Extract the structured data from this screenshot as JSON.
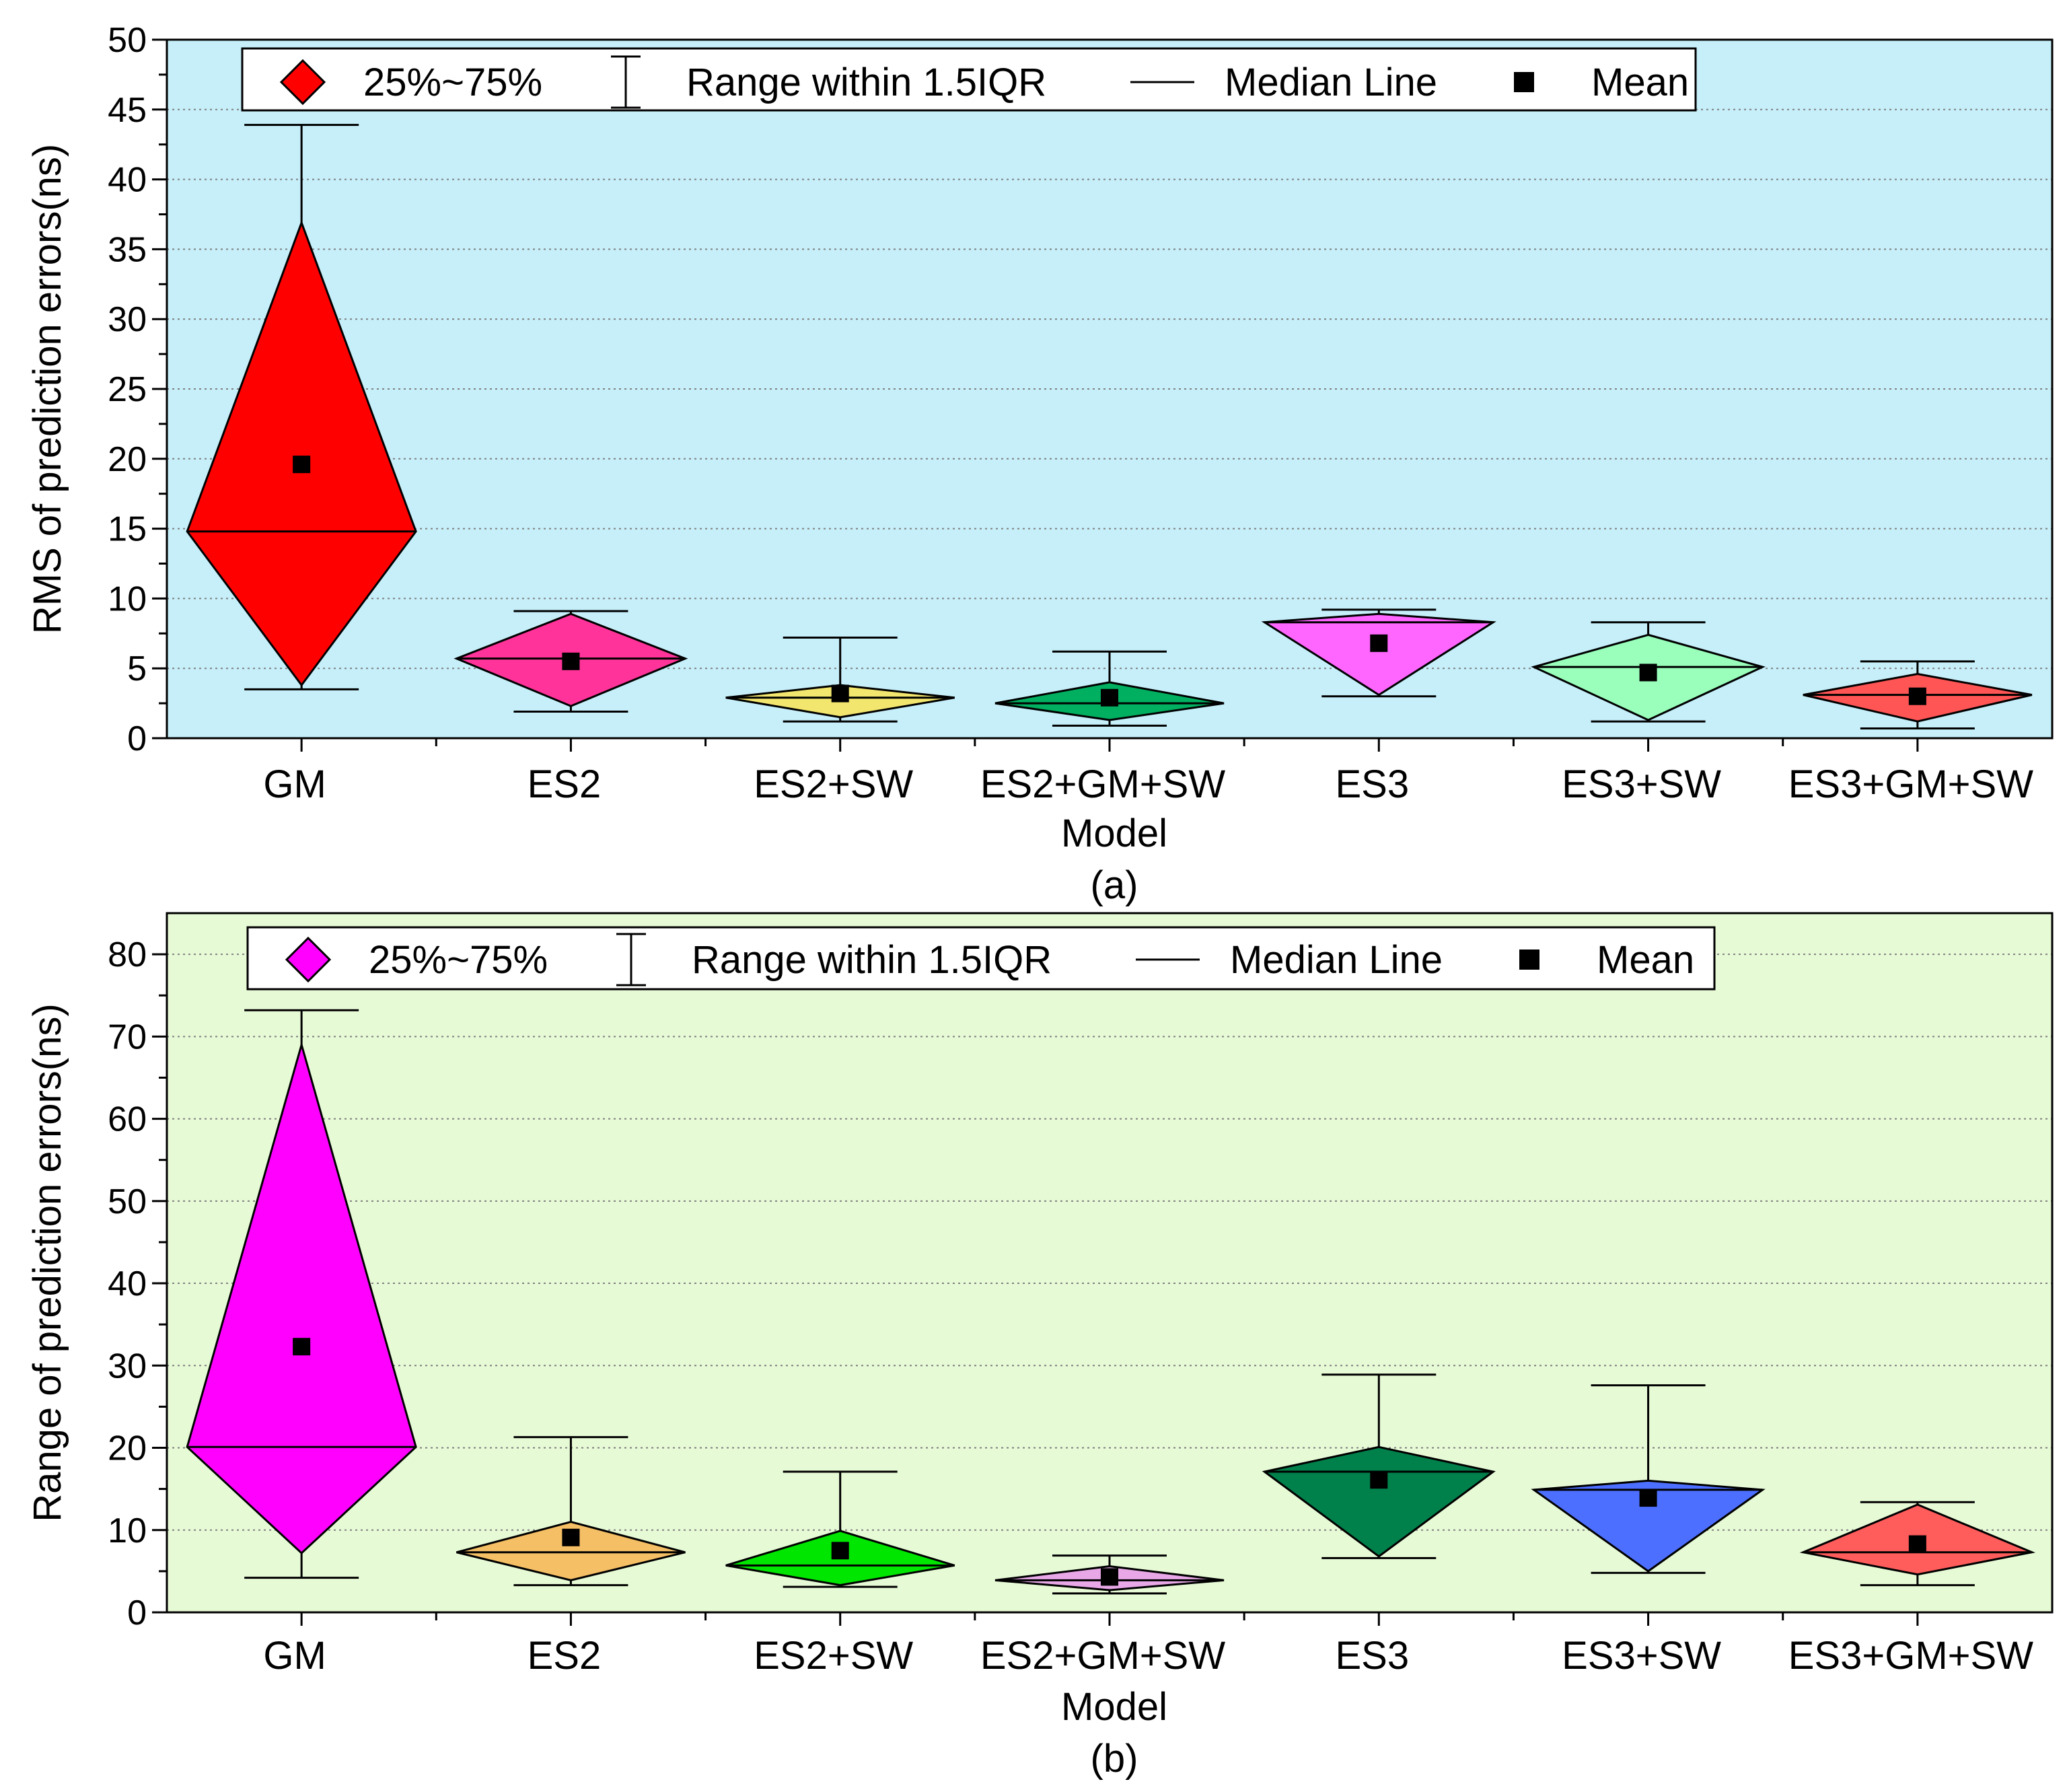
{
  "chart_data": [
    {
      "type": "box",
      "panel_label": "(a)",
      "xlabel": "Model",
      "ylabel": "RMS of prediction errors(ns)",
      "ylim": [
        0,
        50
      ],
      "yticks": [
        0,
        5,
        10,
        15,
        20,
        25,
        30,
        35,
        40,
        45,
        50
      ],
      "grid": true,
      "background": "#c6effa",
      "categories": [
        "GM",
        "ES2",
        "ES2+SW",
        "ES2+GM+SW",
        "ES3",
        "ES3+SW",
        "ES3+GM+SW"
      ],
      "series": [
        {
          "name": "GM",
          "whisker_low": 3.5,
          "q1": 3.8,
          "median": 14.8,
          "q3": 36.9,
          "whisker_high": 43.9,
          "mean": 19.6,
          "color": "#ff0000"
        },
        {
          "name": "ES2",
          "whisker_low": 1.9,
          "q1": 2.3,
          "median": 5.7,
          "q3": 8.9,
          "whisker_high": 9.1,
          "mean": 5.5,
          "color": "#ff3399"
        },
        {
          "name": "ES2+SW",
          "whisker_low": 1.2,
          "q1": 1.5,
          "median": 2.9,
          "q3": 3.8,
          "whisker_high": 7.2,
          "mean": 3.2,
          "color": "#f2e66e"
        },
        {
          "name": "ES2+GM+SW",
          "whisker_low": 0.9,
          "q1": 1.3,
          "median": 2.5,
          "q3": 4.0,
          "whisker_high": 6.2,
          "mean": 2.9,
          "color": "#00b060"
        },
        {
          "name": "ES3",
          "whisker_low": 3.0,
          "q1": 3.1,
          "median": 8.3,
          "q3": 8.9,
          "whisker_high": 9.2,
          "mean": 6.8,
          "color": "#ff66ff"
        },
        {
          "name": "ES3+SW",
          "whisker_low": 1.2,
          "q1": 1.3,
          "median": 5.1,
          "q3": 7.4,
          "whisker_high": 8.3,
          "mean": 4.7,
          "color": "#99ffbb"
        },
        {
          "name": "ES3+GM+SW",
          "whisker_low": 0.7,
          "q1": 1.2,
          "median": 3.1,
          "q3": 4.6,
          "whisker_high": 5.5,
          "mean": 3.0,
          "color": "#ff5555"
        }
      ],
      "legend": {
        "position": "top",
        "items": [
          "25%~75%",
          "Range within 1.5IQR",
          "Median Line",
          "Mean"
        ],
        "swatch_color": "#ff0000"
      }
    },
    {
      "type": "box",
      "panel_label": "(b)",
      "xlabel": "Model",
      "ylabel": "Range of prediction errors(ns)",
      "ylim": [
        0,
        85
      ],
      "yticks": [
        0,
        10,
        20,
        30,
        40,
        50,
        60,
        70,
        80
      ],
      "grid": true,
      "background": "#e7fad6",
      "categories": [
        "GM",
        "ES2",
        "ES2+SW",
        "ES2+GM+SW",
        "ES3",
        "ES3+SW",
        "ES3+GM+SW"
      ],
      "series": [
        {
          "name": "GM",
          "whisker_low": 4.2,
          "q1": 7.2,
          "median": 20.1,
          "q3": 69.0,
          "whisker_high": 73.2,
          "mean": 32.3,
          "color": "#ff00ff"
        },
        {
          "name": "ES2",
          "whisker_low": 3.3,
          "q1": 3.9,
          "median": 7.3,
          "q3": 11.0,
          "whisker_high": 21.3,
          "mean": 9.1,
          "color": "#f5bf66"
        },
        {
          "name": "ES2+SW",
          "whisker_low": 3.1,
          "q1": 3.3,
          "median": 5.7,
          "q3": 9.9,
          "whisker_high": 17.1,
          "mean": 7.5,
          "color": "#00e600"
        },
        {
          "name": "ES2+GM+SW",
          "whisker_low": 2.3,
          "q1": 2.7,
          "median": 3.9,
          "q3": 5.6,
          "whisker_high": 6.9,
          "mean": 4.3,
          "color": "#e8a8e8"
        },
        {
          "name": "ES3",
          "whisker_low": 6.6,
          "q1": 6.8,
          "median": 17.1,
          "q3": 20.1,
          "whisker_high": 28.9,
          "mean": 16.1,
          "color": "#00804a"
        },
        {
          "name": "ES3+SW",
          "whisker_low": 4.8,
          "q1": 5.0,
          "median": 14.9,
          "q3": 16.0,
          "whisker_high": 27.6,
          "mean": 13.9,
          "color": "#4d6fff"
        },
        {
          "name": "ES3+GM+SW",
          "whisker_low": 3.3,
          "q1": 4.6,
          "median": 7.3,
          "q3": 13.1,
          "whisker_high": 13.4,
          "mean": 8.3,
          "color": "#ff5c5c"
        }
      ],
      "legend": {
        "position": "top",
        "items": [
          "25%~75%",
          "Range within 1.5IQR",
          "Median Line",
          "Mean"
        ],
        "swatch_color": "#ff00ff"
      }
    }
  ]
}
